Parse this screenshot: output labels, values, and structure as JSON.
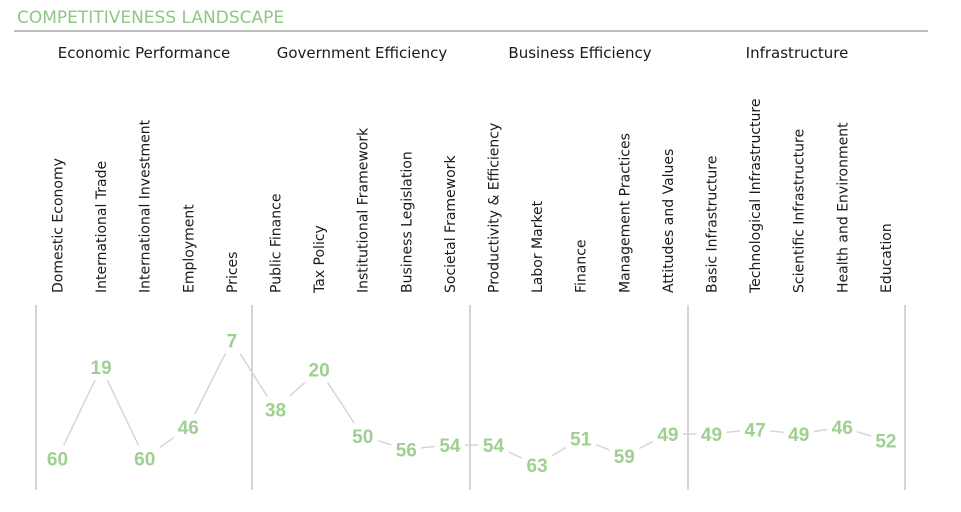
{
  "chart_data": {
    "type": "line",
    "title": "COMPETITIVENESS LANDSCAPE",
    "groups": [
      {
        "name": "Economic Performance",
        "categories": [
          "Domestic Economy",
          "International Trade",
          "International Investment",
          "Employment",
          "Prices"
        ]
      },
      {
        "name": "Government Efficiency",
        "categories": [
          "Public Finance",
          "Tax Policy",
          "Institutional Framework",
          "Business Legislation",
          "Societal Framework"
        ]
      },
      {
        "name": "Business Efficiency",
        "categories": [
          "Productivity & Efficiency",
          "Labor Market",
          "Finance",
          "Management Practices",
          "Attitudes and Values"
        ]
      },
      {
        "name": "Infrastructure",
        "categories": [
          "Basic Infrastructure",
          "Technological Infrastructure",
          "Scientific Infrastructure",
          "Health and Environment",
          "Education"
        ]
      }
    ],
    "categories": [
      "Domestic Economy",
      "International Trade",
      "International Investment",
      "Employment",
      "Prices",
      "Public Finance",
      "Tax Policy",
      "Institutional Framework",
      "Business Legislation",
      "Societal Framework",
      "Productivity & Efficiency",
      "Labor Market",
      "Finance",
      "Management Practices",
      "Attitudes and Values",
      "Basic Infrastructure",
      "Technological Infrastructure",
      "Scientific Infrastructure",
      "Health and Environment",
      "Education"
    ],
    "values": [
      60,
      19,
      60,
      46,
      7,
      38,
      20,
      50,
      56,
      54,
      54,
      63,
      51,
      59,
      49,
      49,
      47,
      49,
      46,
      52
    ],
    "ylim": [
      0,
      63
    ],
    "y_inverted": true,
    "grid": false,
    "colors": {
      "title": "#8dc882",
      "values": "#9fd08f",
      "line": "#d6d6d6",
      "separators": "#aaaaaa"
    }
  }
}
